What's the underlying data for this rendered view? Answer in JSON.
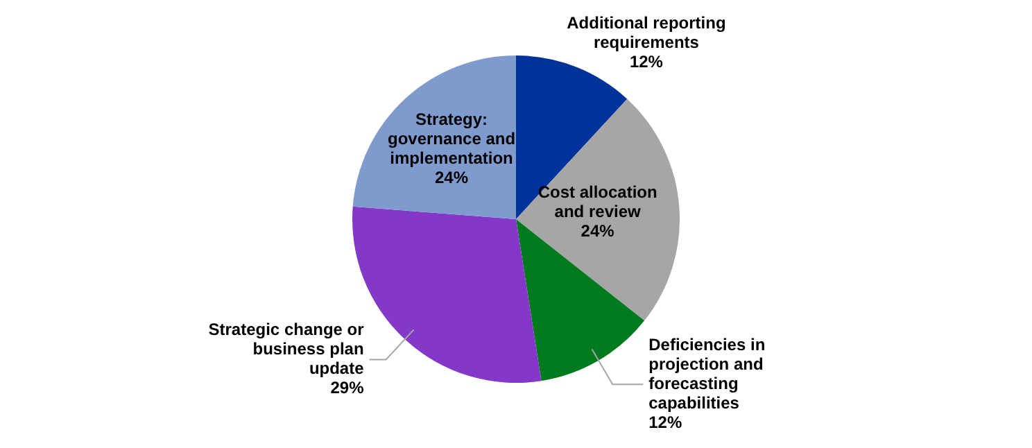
{
  "chart_data": {
    "type": "pie",
    "categories": [
      "Additional reporting requirements",
      "Cost allocation and review",
      "Deficiencies in projection and forecasting capabilities",
      "Strategic change or business plan update",
      "Strategy: governance and implementation"
    ],
    "values": [
      12,
      24,
      12,
      29,
      24
    ],
    "colors": [
      "#003399",
      "#a6a6a6",
      "#007a1f",
      "#8338c8",
      "#7f9acd"
    ],
    "value_labels": [
      "12%",
      "24%",
      "12%",
      "29%",
      "24%"
    ],
    "legend": false
  }
}
